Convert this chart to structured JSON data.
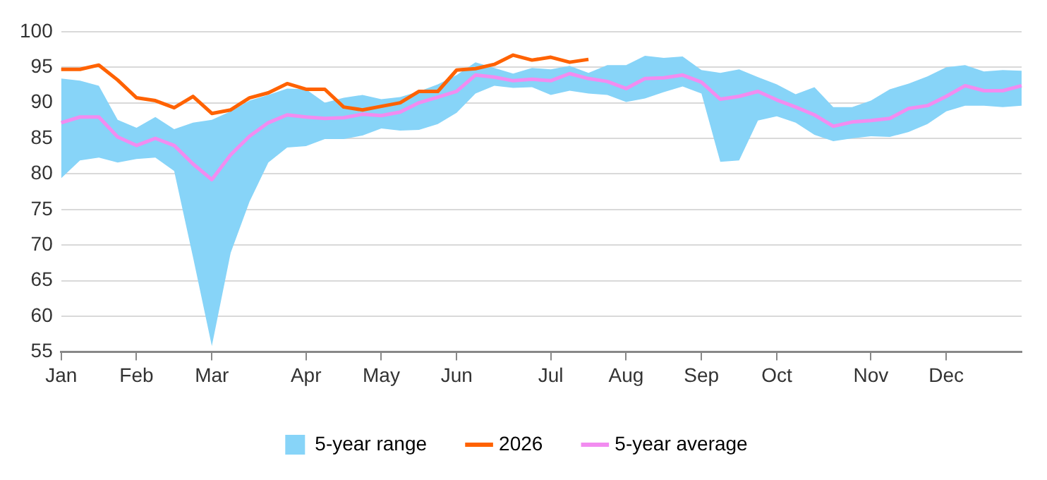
{
  "chart_data": {
    "type": "line",
    "categories": [
      "Jan",
      null,
      null,
      null,
      "Feb",
      null,
      null,
      null,
      "Mar",
      null,
      null,
      null,
      null,
      "Apr",
      null,
      null,
      null,
      "May",
      null,
      null,
      null,
      "Jun",
      null,
      null,
      null,
      null,
      "Jul",
      null,
      null,
      null,
      "Aug",
      null,
      null,
      null,
      "Sep",
      null,
      null,
      null,
      "Oct",
      null,
      null,
      null,
      null,
      "Nov",
      null,
      null,
      null,
      "Dec",
      null,
      null,
      null,
      null
    ],
    "ylim": [
      55,
      100
    ],
    "yticks": [
      55,
      60,
      65,
      70,
      75,
      80,
      85,
      90,
      95,
      100
    ],
    "grid": "y",
    "legend": "bottom",
    "marker": "none",
    "line_style": "solid",
    "series": [
      {
        "name": "5-year range",
        "type": "area",
        "color": "#87d4f8",
        "values": [
          null,
          null,
          null,
          null,
          null,
          null,
          null,
          null,
          null,
          null,
          null,
          null,
          null,
          null,
          null,
          null,
          null,
          null,
          null,
          null,
          null,
          null,
          null,
          null,
          null,
          null,
          null,
          null,
          null,
          null,
          null,
          null,
          null,
          null,
          null,
          null,
          null,
          null,
          null,
          null,
          null,
          null,
          null,
          null,
          null,
          null,
          null,
          null,
          null,
          null,
          null,
          null
        ],
        "upper": [
          93.4,
          93.1,
          92.4,
          87.6,
          86.5,
          88.0,
          86.3,
          87.2,
          87.6,
          88.8,
          90.3,
          91.1,
          92.0,
          91.9,
          90.0,
          90.7,
          91.1,
          90.5,
          90.8,
          91.6,
          92.6,
          93.9,
          95.7,
          94.9,
          94.1,
          94.9,
          94.7,
          95.2,
          94.2,
          95.3,
          95.3,
          96.6,
          96.3,
          96.5,
          94.6,
          94.2,
          94.7,
          93.6,
          92.6,
          91.2,
          92.2,
          89.4,
          89.4,
          90.3,
          91.9,
          92.7,
          93.7,
          95.0,
          95.3,
          94.4,
          94.6,
          94.5
        ],
        "lower": [
          79.4,
          81.9,
          82.3,
          81.6,
          82.1,
          82.3,
          80.4,
          68.3,
          55.8,
          68.9,
          76.1,
          81.6,
          83.7,
          83.9,
          84.9,
          84.9,
          85.4,
          86.4,
          86.1,
          86.2,
          87.0,
          88.6,
          91.3,
          92.4,
          92.1,
          92.2,
          91.1,
          91.7,
          91.3,
          91.1,
          90.1,
          90.6,
          91.5,
          92.3,
          91.3,
          81.7,
          81.9,
          87.5,
          88.1,
          87.2,
          85.5,
          84.6,
          85.0,
          85.3,
          85.2,
          85.9,
          87.0,
          88.8,
          89.6,
          89.6,
          89.4,
          89.6
        ]
      },
      {
        "name": "2026",
        "type": "line",
        "color": "#ff6200",
        "values": [
          94.7,
          94.7,
          95.3,
          93.2,
          90.7,
          90.3,
          89.3,
          90.9,
          88.5,
          89.0,
          90.7,
          91.4,
          92.7,
          91.9,
          91.9,
          89.4,
          89.0,
          89.5,
          90.0,
          91.6,
          91.6,
          94.6,
          94.8,
          95.4,
          96.7,
          96.0,
          96.4,
          95.7,
          96.1,
          null,
          null,
          null,
          null,
          null,
          null,
          null,
          null,
          null,
          null,
          null,
          null,
          null,
          null,
          null,
          null,
          null,
          null,
          null,
          null,
          null,
          null,
          null
        ]
      },
      {
        "name": "5-year average",
        "type": "line",
        "color": "#f28cf0",
        "values": [
          87.2,
          88.0,
          88.0,
          85.2,
          84.0,
          85.0,
          84.0,
          81.4,
          79.2,
          82.7,
          85.3,
          87.2,
          88.3,
          88.0,
          87.8,
          87.9,
          88.4,
          88.2,
          88.7,
          90.0,
          90.8,
          91.6,
          93.9,
          93.6,
          93.1,
          93.3,
          93.1,
          94.1,
          93.4,
          93.0,
          92.0,
          93.4,
          93.5,
          93.9,
          92.9,
          90.5,
          90.9,
          91.6,
          90.4,
          89.4,
          88.3,
          86.7,
          87.3,
          87.5,
          87.8,
          89.2,
          89.6,
          90.9,
          92.4,
          91.7,
          91.7,
          92.4
        ]
      }
    ]
  }
}
